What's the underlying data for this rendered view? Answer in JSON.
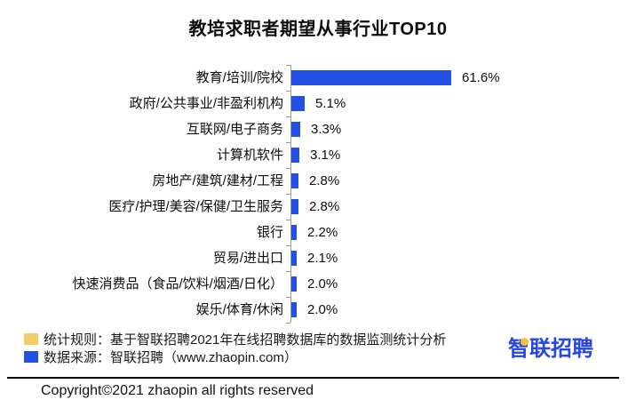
{
  "title": "教培求职者期望从事行业TOP10",
  "chart_data": {
    "type": "bar",
    "orientation": "horizontal",
    "title": "教培求职者期望从事行业TOP10",
    "categories": [
      "教育/培训/院校",
      "政府/公共事业/非盈利机构",
      "互联网/电子商务",
      "计算机软件",
      "房地产/建筑/建材/工程",
      "医疗/护理/美容/保健/卫生服务",
      "银行",
      "贸易/进出口",
      "快速消费品（食品/饮料/烟酒/日化）",
      "娱乐/体育/休闲"
    ],
    "values": [
      61.6,
      5.1,
      3.3,
      3.1,
      2.8,
      2.8,
      2.2,
      2.1,
      2.0,
      2.0
    ],
    "value_labels": [
      "61.6%",
      "5.1%",
      "3.3%",
      "3.1%",
      "2.8%",
      "2.8%",
      "2.2%",
      "2.1%",
      "2.0%",
      "2.0%"
    ],
    "unit": "%",
    "xlim": [
      0,
      65
    ],
    "grid": false,
    "data_labels": true,
    "legend_position": "none",
    "bar_color": "#2351e6",
    "axis_color": "#999999"
  },
  "notes": [
    {
      "swatch_color": "#f2cd6b",
      "text": "统计规则：基于智联招聘2021年在线招聘数据库的数据监测统计分析"
    },
    {
      "swatch_color": "#2351e6",
      "text": "数据来源：智联招聘（www.zhaopin.com）"
    }
  ],
  "logo": {
    "text": "智联招聘",
    "color": "#2746e3",
    "dot_color": "#f5c331"
  },
  "footer": {
    "copyright": "Copyright©2021 zhaopin all rights reserved"
  }
}
